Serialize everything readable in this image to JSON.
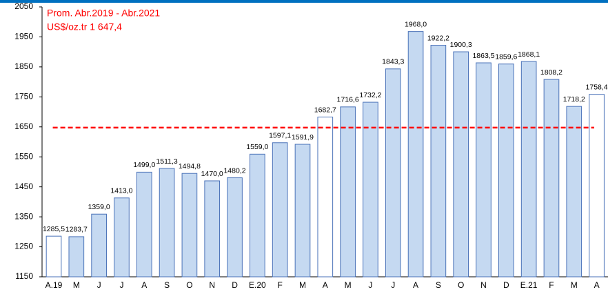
{
  "chart_data": {
    "type": "bar",
    "annotations": [
      "Prom. Abr.2019 - Abr.2021",
      "US$/oz.tr 1 647,4"
    ],
    "average": 1647.4,
    "average_color": "#ff0000",
    "categories": [
      "A.19",
      "M",
      "J",
      "J",
      "A",
      "S",
      "O",
      "N",
      "D",
      "E.20",
      "F",
      "M",
      "A",
      "M",
      "J",
      "J",
      "A",
      "S",
      "O",
      "N",
      "D",
      "E.21",
      "F",
      "M",
      "A"
    ],
    "values": [
      1285.5,
      1283.7,
      1359.0,
      1413.0,
      1499.0,
      1511.3,
      1494.8,
      1470.0,
      1480.2,
      1559.0,
      1597.1,
      1591.9,
      1682.7,
      1716.6,
      1732.2,
      1843.3,
      1968.0,
      1922.2,
      1900.3,
      1863.5,
      1859.6,
      1868.1,
      1808.2,
      1718.2,
      1758.4
    ],
    "value_labels": [
      "1285,5",
      "1283,7",
      "1359,0",
      "1413,0",
      "1499,0",
      "1511,3",
      "1494,8",
      "1470,0",
      "1480,2",
      "1559,0",
      "1597,1",
      "1591,9",
      "1682,7",
      "1716,6",
      "1732,2",
      "1843,3",
      "1968,0",
      "1922,2",
      "1900,3",
      "1863,5",
      "1859,6",
      "1868,1",
      "1808,2",
      "1718,2",
      "1758,4"
    ],
    "colors": [
      "#ffffff",
      "#c5d9f1",
      "#c5d9f1",
      "#c5d9f1",
      "#c5d9f1",
      "#c5d9f1",
      "#c5d9f1",
      "#c5d9f1",
      "#c5d9f1",
      "#c5d9f1",
      "#c5d9f1",
      "#c5d9f1",
      "#ffffff",
      "#c5d9f1",
      "#c5d9f1",
      "#c5d9f1",
      "#c5d9f1",
      "#c5d9f1",
      "#c5d9f1",
      "#c5d9f1",
      "#c5d9f1",
      "#c5d9f1",
      "#c5d9f1",
      "#c5d9f1",
      "#ffffff"
    ],
    "edge_color": "#4a72b8",
    "ylim": [
      1150,
      2050
    ],
    "yticks": [
      1150,
      1250,
      1350,
      1450,
      1550,
      1650,
      1750,
      1850,
      1950,
      2050
    ]
  }
}
